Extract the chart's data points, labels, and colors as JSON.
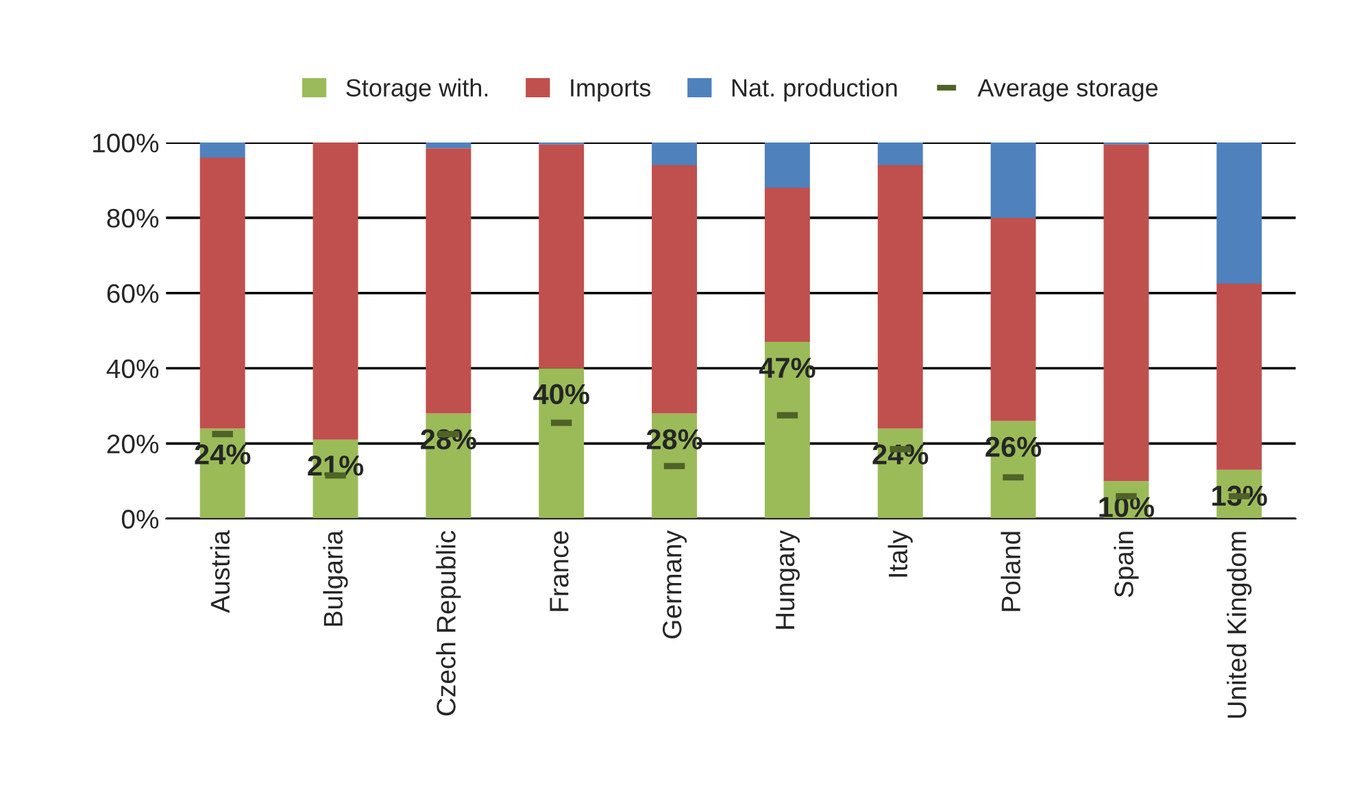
{
  "chart_data": {
    "type": "bar",
    "stacked": true,
    "categories": [
      "Austria",
      "Bulgaria",
      "Czech Republic",
      "France",
      "Germany",
      "Hungary",
      "Italy",
      "Poland",
      "Spain",
      "United Kingdom"
    ],
    "series": [
      {
        "name": "Storage with.",
        "color": "#9bbb59",
        "values": [
          24,
          21,
          28,
          40,
          28,
          47,
          24,
          26,
          10,
          13
        ],
        "value_labels": [
          "24%",
          "21%",
          "28%",
          "40%",
          "28%",
          "47%",
          "24%",
          "26%",
          "10%",
          "13%"
        ]
      },
      {
        "name": "Imports",
        "color": "#c0504d",
        "values": [
          72,
          79,
          70.5,
          59.5,
          66,
          41,
          70,
          54,
          89.5,
          49.5
        ]
      },
      {
        "name": "Nat. production",
        "color": "#4f81bd",
        "values": [
          4,
          0,
          1.5,
          0.5,
          6,
          12,
          6,
          20,
          0.5,
          37.5
        ]
      },
      {
        "name": "Average storage",
        "type": "scatter",
        "color": "#4f6228",
        "values": [
          22.5,
          11.5,
          22.5,
          25.5,
          14,
          27.5,
          18.5,
          11,
          6,
          6
        ]
      }
    ],
    "ylim": [
      0,
      100
    ],
    "yticks": [
      {
        "value": 0,
        "label": "0%"
      },
      {
        "value": 20,
        "label": "20%"
      },
      {
        "value": 40,
        "label": "40%"
      },
      {
        "value": 60,
        "label": "60%"
      },
      {
        "value": 80,
        "label": "80%"
      },
      {
        "value": 100,
        "label": "100%"
      }
    ],
    "grid": "y",
    "legend": "top"
  }
}
